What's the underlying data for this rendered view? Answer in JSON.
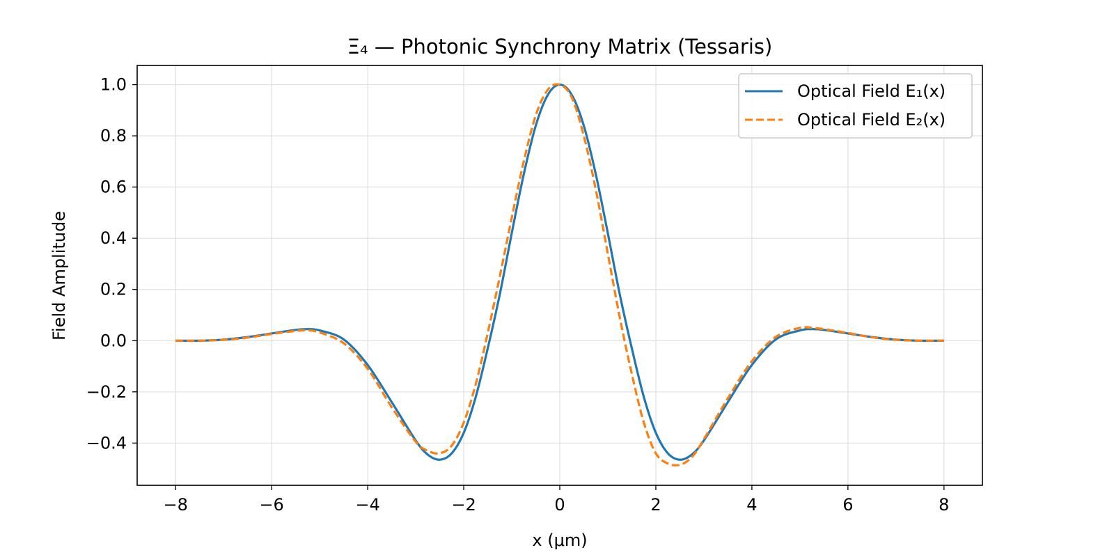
{
  "chart_data": {
    "type": "line",
    "title": "Ξ₄ — Photonic Synchrony Matrix (Tessaris)",
    "xlabel": "x (μm)",
    "ylabel": "Field Amplitude",
    "xlim": [
      -8.8,
      8.8
    ],
    "ylim": [
      -0.565,
      1.075
    ],
    "xticks": [
      -8,
      -6,
      -4,
      -2,
      0,
      2,
      4,
      6,
      8
    ],
    "xtick_labels": [
      "−8",
      "−6",
      "−4",
      "−2",
      "0",
      "2",
      "4",
      "6",
      "8"
    ],
    "yticks": [
      -0.4,
      -0.2,
      0.0,
      0.2,
      0.4,
      0.6,
      0.8,
      1.0
    ],
    "ytick_labels": [
      "−0.4",
      "−0.2",
      "0.0",
      "0.2",
      "0.4",
      "0.6",
      "0.8",
      "1.0"
    ],
    "grid": true,
    "legend_position": "top-right",
    "x": [
      -8,
      -7.5,
      -7,
      -6.5,
      -6,
      -5.5,
      -5.25,
      -5,
      -4.5,
      -4,
      -3.5,
      -3,
      -2.75,
      -2.5,
      -2.25,
      -2,
      -1.75,
      -1.5,
      -1.25,
      -1,
      -0.75,
      -0.5,
      -0.25,
      0,
      0.25,
      0.5,
      0.75,
      1,
      1.25,
      1.5,
      1.75,
      2,
      2.25,
      2.5,
      2.75,
      3,
      3.5,
      4,
      4.5,
      5,
      5.25,
      5.5,
      6,
      6.5,
      7,
      7.5,
      8
    ],
    "series": [
      {
        "name": "Optical Field E₁(x)",
        "color": "#1f77b4",
        "style": "solid",
        "values": [
          0.0,
          0.0,
          0.004,
          0.014,
          0.028,
          0.042,
          0.045,
          0.04,
          0.005,
          -0.095,
          -0.24,
          -0.39,
          -0.445,
          -0.465,
          -0.44,
          -0.36,
          -0.22,
          -0.03,
          0.18,
          0.42,
          0.65,
          0.84,
          0.96,
          1.0,
          0.96,
          0.84,
          0.65,
          0.42,
          0.18,
          -0.03,
          -0.22,
          -0.36,
          -0.44,
          -0.465,
          -0.445,
          -0.39,
          -0.24,
          -0.095,
          0.005,
          0.04,
          0.045,
          0.042,
          0.028,
          0.014,
          0.004,
          0.0,
          0.0
        ]
      },
      {
        "name": "Optical Field E₂(x)",
        "color": "#ff7f0e",
        "style": "dashed",
        "values": [
          0.0,
          0.0,
          0.003,
          0.012,
          0.026,
          0.038,
          0.04,
          0.032,
          -0.01,
          -0.11,
          -0.26,
          -0.395,
          -0.43,
          -0.44,
          -0.41,
          -0.32,
          -0.17,
          0.03,
          0.25,
          0.48,
          0.7,
          0.88,
          0.98,
          1.0,
          0.95,
          0.8,
          0.59,
          0.34,
          0.09,
          -0.13,
          -0.32,
          -0.44,
          -0.48,
          -0.485,
          -0.455,
          -0.385,
          -0.225,
          -0.08,
          0.015,
          0.05,
          0.05,
          0.045,
          0.03,
          0.013,
          0.003,
          0.0,
          0.0
        ]
      }
    ]
  }
}
